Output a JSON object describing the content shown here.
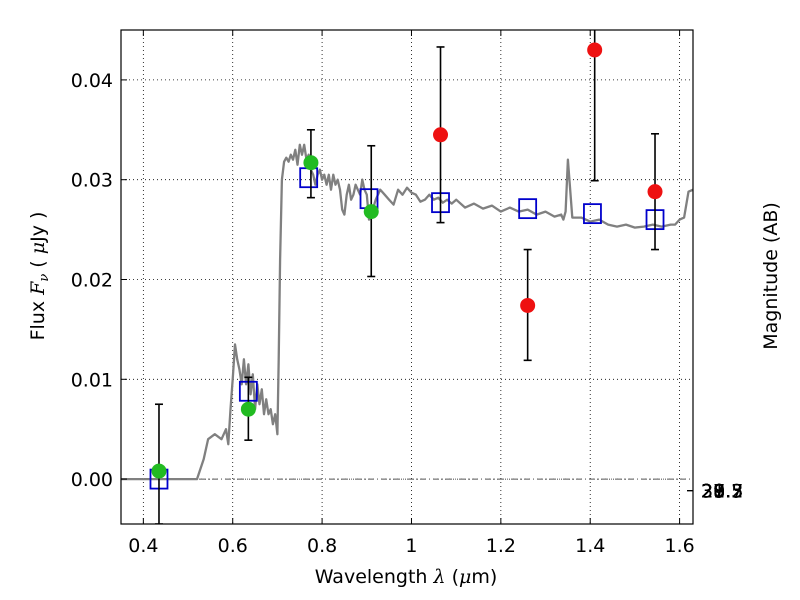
{
  "chart_data": {
    "type": "scatter",
    "xlabel": "Wavelength  λ (μm)",
    "ylabel": "Flux  F_ν  ( μJy )",
    "y2label": "Magnitude (AB)",
    "xlim": [
      0.35,
      1.63
    ],
    "ylim": [
      -0.0045,
      0.045
    ],
    "grid": true,
    "x_ticks": [
      0.4,
      0.6,
      0.8,
      1.0,
      1.2,
      1.4,
      1.6
    ],
    "x_tick_labels": [
      "0.4",
      "0.6",
      "0.8",
      "1",
      "1.2",
      "1.4",
      "1.6"
    ],
    "y_ticks": [
      0.0,
      0.01,
      0.02,
      0.03,
      0.04
    ],
    "y_tick_labels": [
      "0.00",
      "0.01",
      "0.02",
      "0.03",
      "0.04"
    ],
    "mag_ticks": [
      "27.3",
      "27.5",
      "27.7",
      "28",
      "28.2",
      "28.5",
      "29",
      "29.5",
      "30",
      "31"
    ],
    "series": [
      {
        "kind": "line",
        "color": "#808080",
        "x": [
          0.35,
          0.52,
          0.535,
          0.545,
          0.56,
          0.575,
          0.585,
          0.59,
          0.595,
          0.6,
          0.605,
          0.61,
          0.615,
          0.62,
          0.625,
          0.63,
          0.635,
          0.64,
          0.645,
          0.65,
          0.655,
          0.66,
          0.665,
          0.67,
          0.675,
          0.68,
          0.685,
          0.69,
          0.695,
          0.7,
          0.703,
          0.706,
          0.71,
          0.715,
          0.72,
          0.725,
          0.73,
          0.735,
          0.74,
          0.745,
          0.75,
          0.755,
          0.76,
          0.765,
          0.77,
          0.775,
          0.78,
          0.785,
          0.79,
          0.795,
          0.8,
          0.805,
          0.81,
          0.815,
          0.82,
          0.825,
          0.83,
          0.835,
          0.84,
          0.845,
          0.85,
          0.855,
          0.86,
          0.865,
          0.87,
          0.875,
          0.88,
          0.885,
          0.89,
          0.895,
          0.9,
          0.905,
          0.91,
          0.92,
          0.93,
          0.94,
          0.95,
          0.96,
          0.97,
          0.98,
          0.99,
          1.0,
          1.01,
          1.02,
          1.03,
          1.04,
          1.05,
          1.06,
          1.07,
          1.08,
          1.09,
          1.1,
          1.12,
          1.14,
          1.16,
          1.18,
          1.2,
          1.22,
          1.24,
          1.26,
          1.28,
          1.3,
          1.32,
          1.335,
          1.34,
          1.345,
          1.35,
          1.36,
          1.38,
          1.4,
          1.42,
          1.44,
          1.46,
          1.48,
          1.5,
          1.52,
          1.54,
          1.56,
          1.58,
          1.59,
          1.6,
          1.61,
          1.62,
          1.63
        ],
        "y": [
          0.0,
          0.0,
          0.002,
          0.004,
          0.0045,
          0.004,
          0.005,
          0.0035,
          0.007,
          0.01,
          0.0135,
          0.012,
          0.011,
          0.0095,
          0.012,
          0.0095,
          0.0115,
          0.0085,
          0.0105,
          0.007,
          0.0095,
          0.0075,
          0.009,
          0.0065,
          0.008,
          0.0065,
          0.007,
          0.0055,
          0.0065,
          0.0045,
          0.012,
          0.022,
          0.03,
          0.0318,
          0.0322,
          0.0318,
          0.0325,
          0.032,
          0.033,
          0.0315,
          0.0335,
          0.0325,
          0.0335,
          0.032,
          0.0325,
          0.031,
          0.0305,
          0.0295,
          0.0305,
          0.031,
          0.03,
          0.0305,
          0.0295,
          0.0305,
          0.029,
          0.0305,
          0.0295,
          0.03,
          0.029,
          0.027,
          0.0265,
          0.0285,
          0.0295,
          0.028,
          0.0285,
          0.0295,
          0.029,
          0.0285,
          0.03,
          0.029,
          0.0285,
          0.026,
          0.0265,
          0.028,
          0.029,
          0.0285,
          0.028,
          0.0275,
          0.029,
          0.0285,
          0.0292,
          0.0287,
          0.0285,
          0.0278,
          0.028,
          0.0285,
          0.028,
          0.0282,
          0.0277,
          0.028,
          0.0276,
          0.028,
          0.0272,
          0.0276,
          0.0271,
          0.0274,
          0.0268,
          0.0272,
          0.0268,
          0.027,
          0.0265,
          0.0268,
          0.0263,
          0.0265,
          0.026,
          0.0268,
          0.032,
          0.0262,
          0.0262,
          0.0258,
          0.026,
          0.0255,
          0.0253,
          0.0255,
          0.0252,
          0.0253,
          0.0255,
          0.0253,
          0.0255,
          0.0255,
          0.026,
          0.0262,
          0.0288,
          0.029
        ]
      },
      {
        "kind": "open-squares",
        "color": "#0000cc",
        "x": [
          0.435,
          0.635,
          0.77,
          0.905,
          1.065,
          1.26,
          1.405,
          1.545
        ],
        "y": [
          0.0,
          0.0088,
          0.0302,
          0.0281,
          0.0277,
          0.0271,
          0.0266,
          0.026
        ]
      },
      {
        "kind": "filled-circles-errorbars",
        "color": "#22bb22",
        "x": [
          0.435,
          0.635,
          0.775,
          0.91
        ],
        "y": [
          0.0008,
          0.007,
          0.0317,
          0.0268
        ],
        "yerr_low": [
          0.0053,
          0.0031,
          0.0035,
          0.0065
        ],
        "yerr_high": [
          0.0067,
          0.0032,
          0.0033,
          0.0066
        ]
      },
      {
        "kind": "filled-circles-errorbars",
        "color": "#ee1111",
        "x": [
          1.065,
          1.26,
          1.41,
          1.545
        ],
        "y": [
          0.0345,
          0.0174,
          0.043,
          0.0288
        ],
        "yerr_low": [
          0.0088,
          0.0055,
          0.0131,
          0.0058
        ],
        "yerr_high": [
          0.0088,
          0.0056,
          0.0035,
          0.0058
        ]
      }
    ]
  }
}
